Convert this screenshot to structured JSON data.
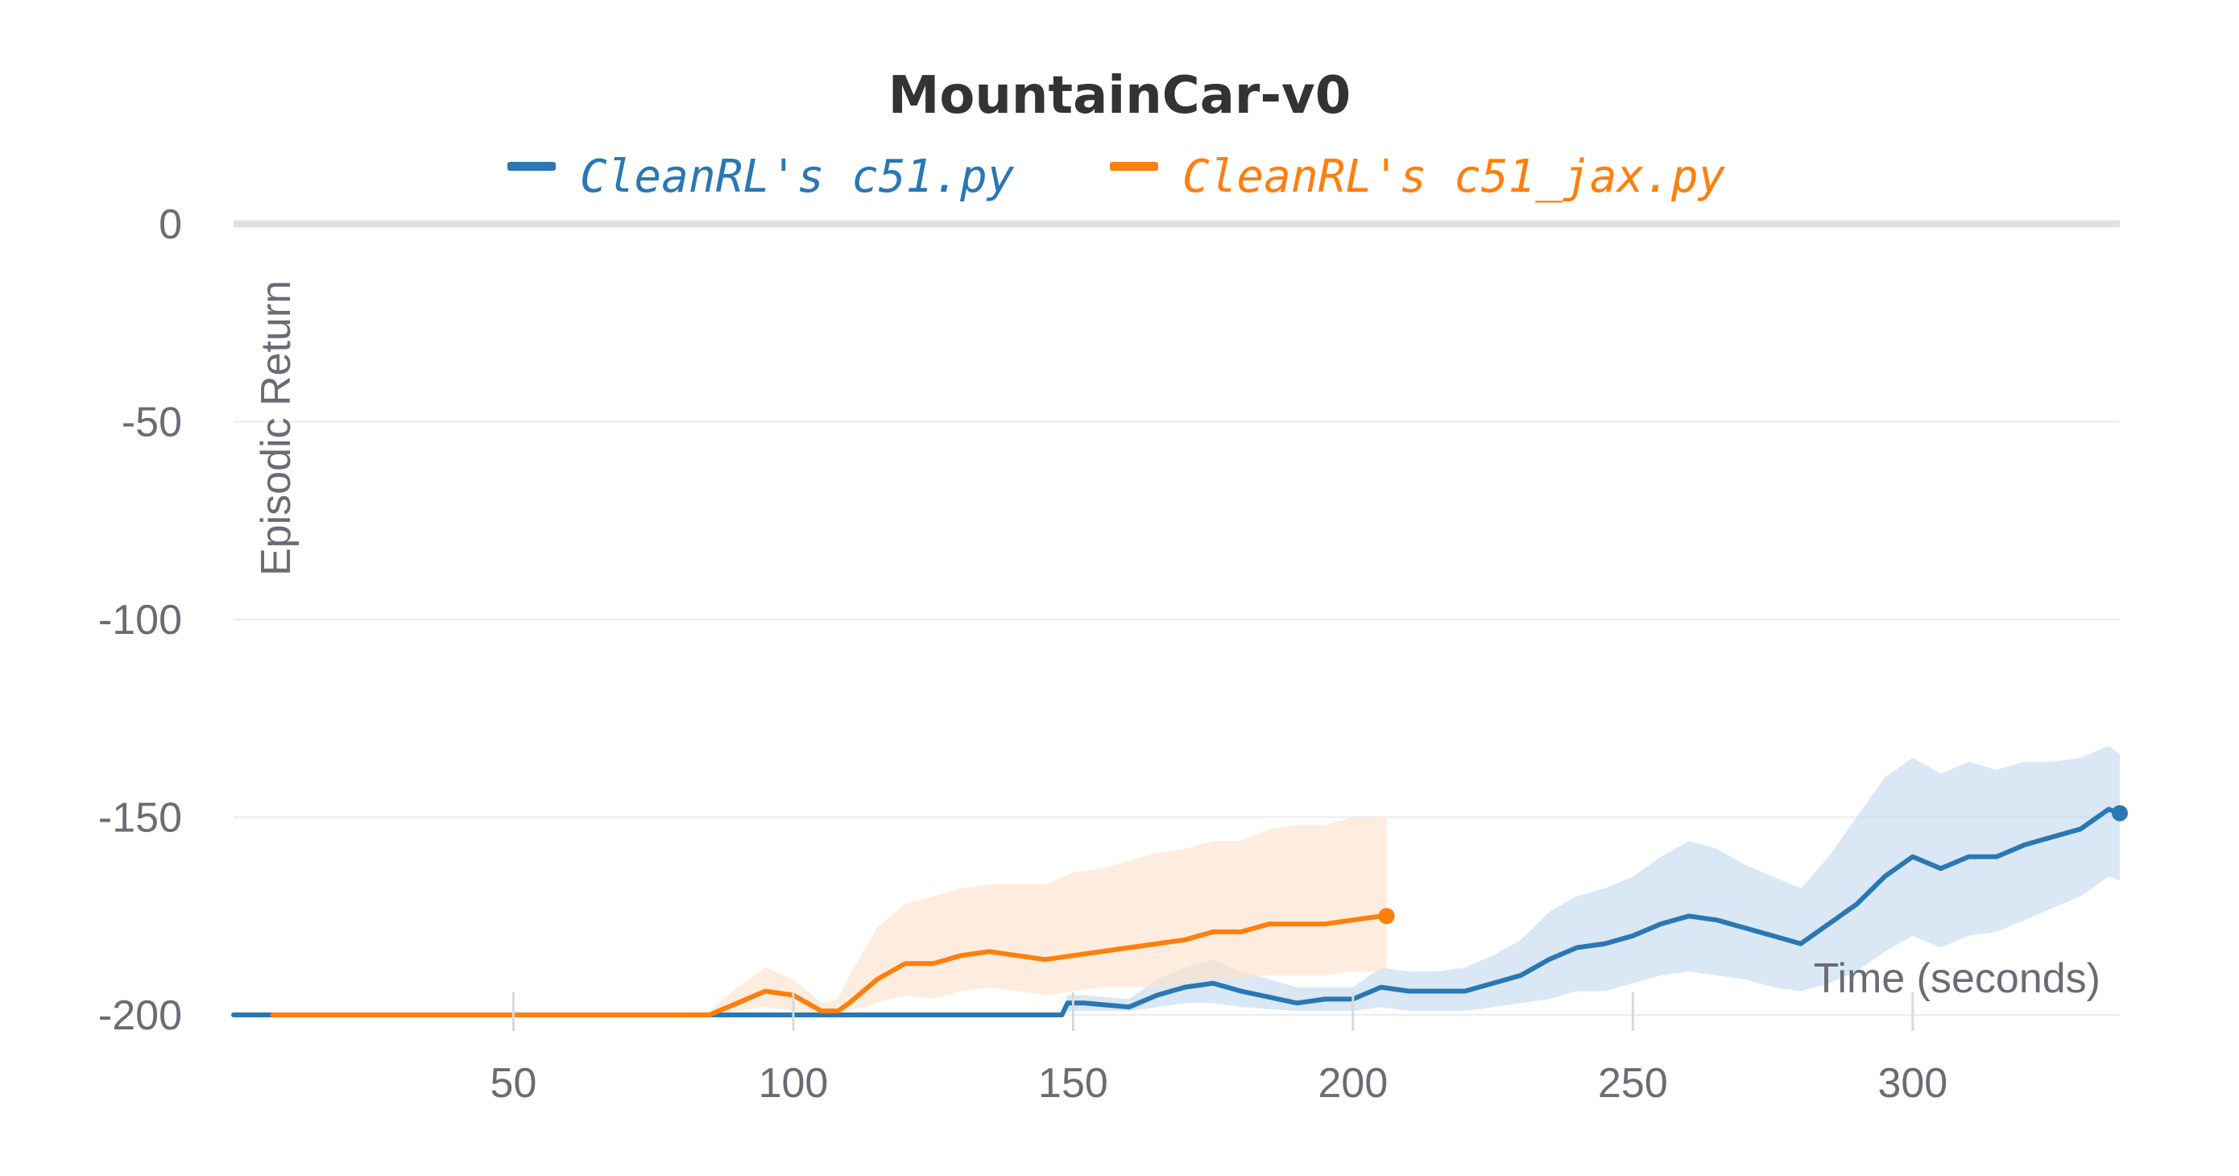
{
  "chart_data": {
    "type": "line",
    "title": "MountainCar-v0",
    "xlabel": "Time (seconds)",
    "ylabel": "Episodic Return",
    "xlim": [
      0,
      337
    ],
    "ylim": [
      -200,
      0
    ],
    "xticks": [
      50,
      100,
      150,
      200,
      250,
      300
    ],
    "yticks": [
      0,
      -50,
      -100,
      -150,
      -200
    ],
    "grid": true,
    "legend_position": "top",
    "series": [
      {
        "name": "CleanRL's c51.py",
        "color": "#2a77b4",
        "band_color": "#c5dbee",
        "x": [
          0,
          50,
          100,
          148,
          149,
          152,
          160,
          165,
          170,
          175,
          180,
          190,
          195,
          200,
          205,
          210,
          215,
          220,
          225,
          230,
          235,
          240,
          245,
          250,
          255,
          260,
          265,
          270,
          275,
          280,
          285,
          290,
          295,
          300,
          305,
          310,
          315,
          320,
          325,
          330,
          335,
          337
        ],
        "y": [
          -200,
          -200,
          -200,
          -200,
          -197,
          -197,
          -198,
          -195,
          -193,
          -192,
          -194,
          -197,
          -196,
          -196,
          -193,
          -194,
          -194,
          -194,
          -192,
          -190,
          -186,
          -183,
          -182,
          -180,
          -177,
          -175,
          -176,
          -178,
          -180,
          -182,
          -177,
          -172,
          -165,
          -160,
          -163,
          -160,
          -160,
          -157,
          -155,
          -153,
          -148,
          -149
        ],
        "low": [
          -200,
          -200,
          -200,
          -200,
          -199,
          -199,
          -199,
          -198,
          -197,
          -197,
          -198,
          -199,
          -199,
          -199,
          -198,
          -199,
          -199,
          -199,
          -198,
          -197,
          -196,
          -194,
          -194,
          -192,
          -190,
          -189,
          -190,
          -191,
          -193,
          -194,
          -192,
          -189,
          -184,
          -180,
          -183,
          -180,
          -179,
          -176,
          -173,
          -170,
          -165,
          -166
        ],
        "high": [
          -200,
          -200,
          -200,
          -200,
          -195,
          -195,
          -196,
          -191,
          -188,
          -186,
          -189,
          -193,
          -193,
          -193,
          -188,
          -189,
          -189,
          -188,
          -185,
          -181,
          -174,
          -170,
          -168,
          -165,
          -160,
          -156,
          -158,
          -162,
          -165,
          -168,
          -160,
          -150,
          -140,
          -135,
          -139,
          -136,
          -138,
          -136,
          -136,
          -135,
          -132,
          -134
        ]
      },
      {
        "name": "CleanRL's c51_jax.py",
        "color": "#ff7f0e",
        "band_color": "#fde3cc",
        "x": [
          7,
          70,
          85,
          90,
          95,
          100,
          105,
          108,
          110,
          115,
          120,
          125,
          130,
          135,
          140,
          145,
          150,
          155,
          160,
          165,
          170,
          175,
          180,
          185,
          190,
          195,
          200,
          205,
          206
        ],
        "y": [
          -200,
          -200,
          -200,
          -197,
          -194,
          -195,
          -199,
          -199,
          -197,
          -191,
          -187,
          -187,
          -185,
          -184,
          -185,
          -186,
          -185,
          -184,
          -183,
          -182,
          -181,
          -179,
          -179,
          -177,
          -177,
          -177,
          -176,
          -175,
          -175
        ],
        "low": [
          -200,
          -200,
          -200,
          -199,
          -198,
          -199,
          -200,
          -200,
          -199,
          -197,
          -195,
          -196,
          -194,
          -193,
          -194,
          -195,
          -194,
          -193,
          -193,
          -193,
          -192,
          -191,
          -191,
          -190,
          -190,
          -190,
          -189,
          -189,
          -189
        ],
        "high": [
          -200,
          -200,
          -199,
          -193,
          -188,
          -191,
          -197,
          -196,
          -190,
          -178,
          -172,
          -170,
          -168,
          -167,
          -167,
          -167,
          -164,
          -163,
          -161,
          -159,
          -158,
          -156,
          -156,
          -153,
          -152,
          -152,
          -150,
          -150,
          -150
        ]
      }
    ]
  }
}
